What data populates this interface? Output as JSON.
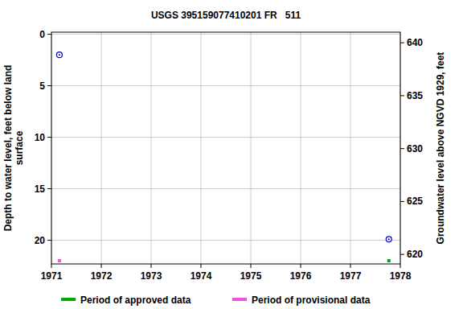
{
  "chart_data": {
    "type": "scatter",
    "title": "USGS 395159077410201 FR   511",
    "y_label": [
      "Depth to water level, feet below land",
      "surface"
    ],
    "y2_label": "Groundwater level above NGVD 1929, feet",
    "x": [
      1971.16,
      1977.77
    ],
    "xlim": [
      1971,
      1978
    ],
    "xticks": [
      1971,
      1972,
      1973,
      1974,
      1975,
      1976,
      1977,
      1978
    ],
    "ylim": [
      22.3,
      -0.2
    ],
    "yticks": [
      0,
      5,
      10,
      15,
      20
    ],
    "y2lim": [
      619.1,
      641.0
    ],
    "y2ticks": [
      620,
      625,
      630,
      635,
      640
    ],
    "grid": true,
    "legend": "bottom",
    "series": [
      {
        "values": [
          2.0,
          19.9
        ],
        "color": "#0000cc",
        "marker": "circle"
      }
    ],
    "periods": [
      {
        "name": "Period of approved data",
        "color": "#00aa00",
        "x": [
          1977.77
        ]
      },
      {
        "name": "Period of provisional data",
        "color": "#ee55dd",
        "x": [
          1971.16
        ]
      }
    ]
  }
}
